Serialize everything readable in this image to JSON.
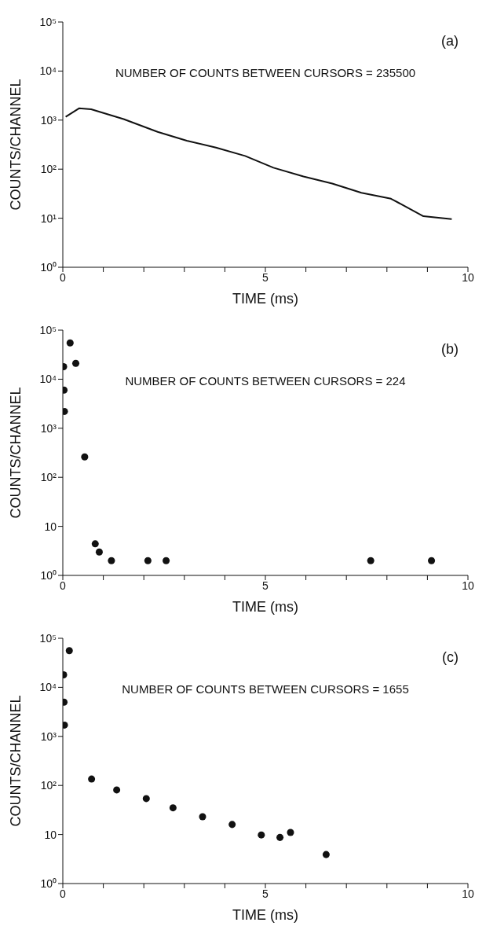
{
  "chart_data": [
    {
      "type": "line",
      "xlabel": "TIME (ms)",
      "ylabel": "COUNTS/CHANNEL",
      "annotations": [
        "(a)",
        "NUMBER OF COUNTS BETWEEN CURSORS = 235500"
      ],
      "log": "y",
      "marker": "none",
      "line_style": "solid",
      "xlim": [
        0,
        10
      ],
      "ylim": [
        1,
        100000
      ],
      "xticks": [
        0,
        {
          "value": 1,
          "label": null
        },
        {
          "value": 2,
          "label": null
        },
        {
          "value": 3,
          "label": null
        },
        {
          "value": 4,
          "label": null
        },
        5,
        {
          "value": 6,
          "label": null
        },
        {
          "value": 7,
          "label": null
        },
        {
          "value": 8,
          "label": null
        },
        {
          "value": 9,
          "label": null
        },
        10
      ],
      "yticks": [
        {
          "value": 1,
          "label": "10⁰"
        },
        {
          "value": 10,
          "label": "10¹"
        },
        {
          "value": 100,
          "label": "10²"
        },
        {
          "value": 1000,
          "label": "10³"
        },
        {
          "value": 10000,
          "label": "10⁴"
        },
        {
          "value": 100000,
          "label": "10⁵"
        }
      ],
      "series": [
        {
          "color": "#111111",
          "x": [
            0.07,
            0.4,
            0.7,
            1.5,
            2.34,
            3.06,
            3.78,
            4.5,
            5.2,
            5.94,
            6.65,
            7.37,
            8.1,
            8.9,
            9.6
          ],
          "values": [
            1170,
            1740,
            1660,
            1050,
            575,
            380,
            275,
            186,
            107,
            71,
            51,
            33,
            25,
            11,
            9.6
          ]
        }
      ]
    },
    {
      "type": "scatter",
      "xlabel": "TIME (ms)",
      "ylabel": "COUNTS/CHANNEL",
      "annotations": [
        "(b)",
        "NUMBER OF COUNTS BETWEEN CURSORS = 224"
      ],
      "log": "y",
      "marker": "circle",
      "xlim": [
        0,
        10
      ],
      "ylim": [
        1,
        100000
      ],
      "xticks": [
        0,
        {
          "value": 1,
          "label": null
        },
        {
          "value": 2,
          "label": null
        },
        {
          "value": 3,
          "label": null
        },
        {
          "value": 4,
          "label": null
        },
        5,
        {
          "value": 6,
          "label": null
        },
        {
          "value": 7,
          "label": null
        },
        {
          "value": 8,
          "label": null
        },
        {
          "value": 9,
          "label": null
        },
        10
      ],
      "yticks": [
        {
          "value": 1,
          "label": "10⁰"
        },
        {
          "value": 10,
          "label": "10"
        },
        {
          "value": 100,
          "label": "10²"
        },
        {
          "value": 1000,
          "label": "10³"
        },
        {
          "value": 10000,
          "label": "10⁴"
        },
        {
          "value": 100000,
          "label": "10⁵"
        }
      ],
      "series": [
        {
          "color": "#111111",
          "x": [
            0.02,
            0.03,
            0.04,
            0.18,
            0.32,
            0.54,
            0.8,
            0.9,
            1.2,
            2.1,
            2.55,
            7.6,
            9.1
          ],
          "values": [
            18000,
            6000,
            2200,
            55000,
            21000,
            260,
            4.4,
            3,
            2,
            2,
            2,
            2,
            2
          ]
        }
      ]
    },
    {
      "type": "scatter",
      "xlabel": "TIME (ms)",
      "ylabel": "COUNTS/CHANNEL",
      "annotations": [
        "(c)",
        "NUMBER OF COUNTS BETWEEN CURSORS = 1655"
      ],
      "log": "y",
      "marker": "circle",
      "xlim": [
        0,
        10
      ],
      "ylim": [
        1,
        100000
      ],
      "xticks": [
        0,
        {
          "value": 1,
          "label": null
        },
        {
          "value": 2,
          "label": null
        },
        {
          "value": 3,
          "label": null
        },
        {
          "value": 4,
          "label": null
        },
        5,
        {
          "value": 6,
          "label": null
        },
        {
          "value": 7,
          "label": null
        },
        {
          "value": 8,
          "label": null
        },
        {
          "value": 9,
          "label": null
        },
        10
      ],
      "yticks": [
        {
          "value": 1,
          "label": "10⁰"
        },
        {
          "value": 10,
          "label": "10"
        },
        {
          "value": 100,
          "label": "10²"
        },
        {
          "value": 1000,
          "label": "10³"
        },
        {
          "value": 10000,
          "label": "10⁴"
        },
        {
          "value": 100000,
          "label": "10⁵"
        }
      ],
      "series": [
        {
          "color": "#111111",
          "x": [
            0.02,
            0.03,
            0.04,
            0.16,
            0.71,
            1.33,
            2.06,
            2.72,
            3.45,
            4.18,
            4.9,
            5.36,
            5.62,
            6.5
          ],
          "values": [
            18000,
            5000,
            1700,
            56000,
            135,
            81,
            54,
            35,
            23,
            16,
            9.8,
            8.7,
            11,
            3.9
          ]
        }
      ]
    }
  ]
}
